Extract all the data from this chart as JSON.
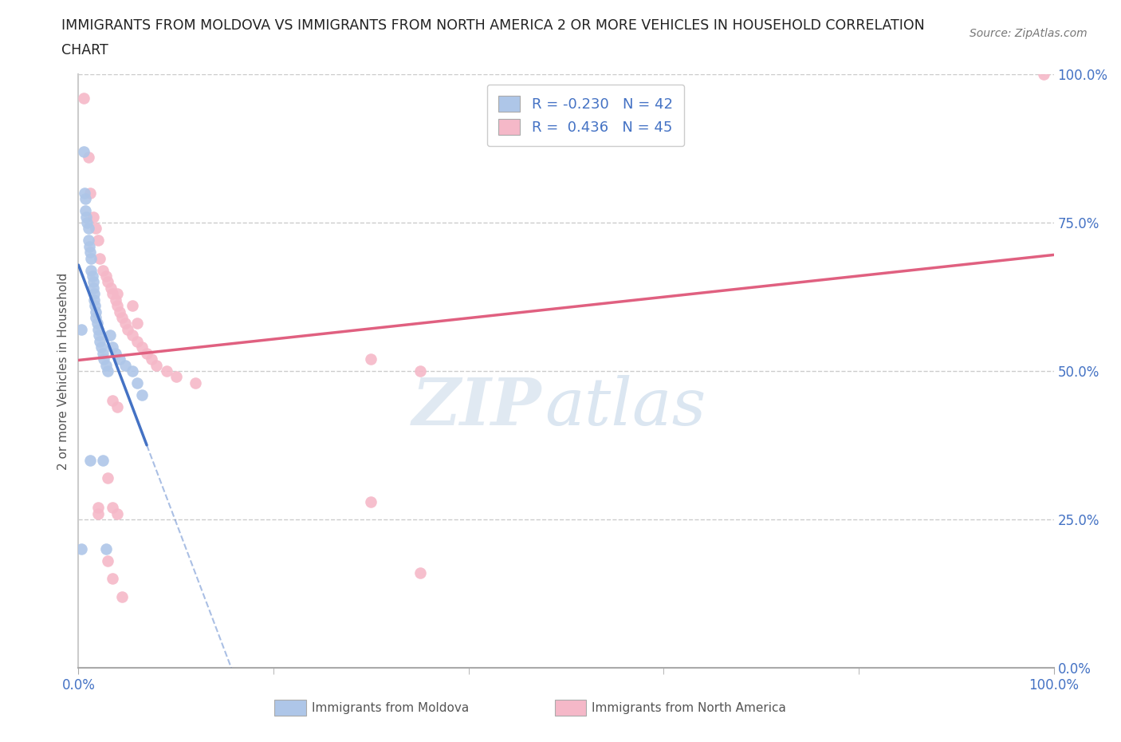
{
  "title_line1": "IMMIGRANTS FROM MOLDOVA VS IMMIGRANTS FROM NORTH AMERICA 2 OR MORE VEHICLES IN HOUSEHOLD CORRELATION",
  "title_line2": "CHART",
  "source_text": "Source: ZipAtlas.com",
  "ylabel": "2 or more Vehicles in Household",
  "xlim": [
    0.0,
    1.0
  ],
  "ylim": [
    0.0,
    1.0
  ],
  "grid_color": "#cccccc",
  "background_color": "#ffffff",
  "moldova_color": "#aec6e8",
  "north_america_color": "#f5b8c8",
  "moldova_line_color": "#4472c4",
  "north_america_line_color": "#e06080",
  "moldova_R": -0.23,
  "moldova_N": 42,
  "north_america_R": 0.436,
  "north_america_N": 45,
  "legend_label_moldova": "Immigrants from Moldova",
  "legend_label_na": "Immigrants from North America",
  "watermark_zip": "ZIP",
  "watermark_atlas": "atlas",
  "moldova_points_x": [
    0.003,
    0.005,
    0.006,
    0.007,
    0.007,
    0.008,
    0.009,
    0.01,
    0.01,
    0.011,
    0.012,
    0.013,
    0.013,
    0.014,
    0.015,
    0.015,
    0.016,
    0.016,
    0.017,
    0.018,
    0.018,
    0.019,
    0.02,
    0.021,
    0.022,
    0.023,
    0.025,
    0.026,
    0.028,
    0.03,
    0.032,
    0.035,
    0.038,
    0.042,
    0.048,
    0.055,
    0.06,
    0.065,
    0.012,
    0.025,
    0.003,
    0.028
  ],
  "moldova_points_y": [
    0.57,
    0.87,
    0.8,
    0.79,
    0.77,
    0.76,
    0.75,
    0.74,
    0.72,
    0.71,
    0.7,
    0.69,
    0.67,
    0.66,
    0.65,
    0.64,
    0.63,
    0.62,
    0.61,
    0.6,
    0.59,
    0.58,
    0.57,
    0.56,
    0.55,
    0.54,
    0.53,
    0.52,
    0.51,
    0.5,
    0.56,
    0.54,
    0.53,
    0.52,
    0.51,
    0.5,
    0.48,
    0.46,
    0.35,
    0.35,
    0.2,
    0.2
  ],
  "na_points_x": [
    0.005,
    0.01,
    0.012,
    0.015,
    0.018,
    0.02,
    0.022,
    0.025,
    0.028,
    0.03,
    0.033,
    0.035,
    0.038,
    0.04,
    0.042,
    0.045,
    0.048,
    0.05,
    0.055,
    0.06,
    0.065,
    0.07,
    0.075,
    0.08,
    0.09,
    0.1,
    0.12,
    0.04,
    0.055,
    0.06,
    0.3,
    0.35,
    0.035,
    0.04,
    0.03,
    0.3,
    0.035,
    0.04,
    0.02,
    0.35,
    0.03,
    0.035,
    0.02,
    0.99,
    0.045
  ],
  "na_points_y": [
    0.96,
    0.86,
    0.8,
    0.76,
    0.74,
    0.72,
    0.69,
    0.67,
    0.66,
    0.65,
    0.64,
    0.63,
    0.62,
    0.61,
    0.6,
    0.59,
    0.58,
    0.57,
    0.56,
    0.55,
    0.54,
    0.53,
    0.52,
    0.51,
    0.5,
    0.49,
    0.48,
    0.63,
    0.61,
    0.58,
    0.52,
    0.5,
    0.45,
    0.44,
    0.32,
    0.28,
    0.27,
    0.26,
    0.27,
    0.16,
    0.18,
    0.15,
    0.26,
    1.0,
    0.12
  ]
}
